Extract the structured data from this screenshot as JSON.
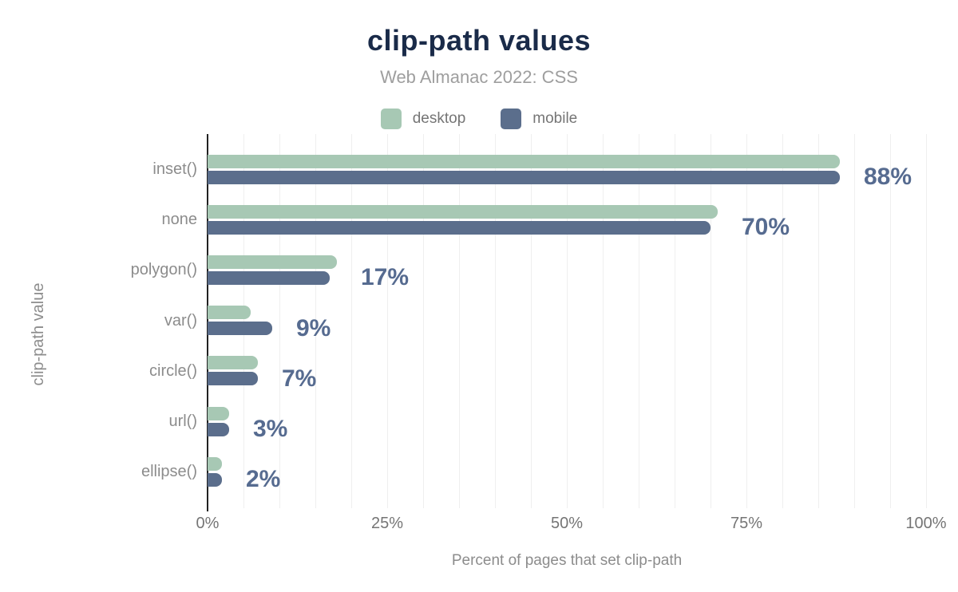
{
  "chart_data": {
    "type": "bar",
    "orientation": "horizontal",
    "title": "clip-path values",
    "subtitle": "Web Almanac 2022: CSS",
    "categories": [
      "inset()",
      "none",
      "polygon()",
      "var()",
      "circle()",
      "url()",
      "ellipse()"
    ],
    "series": [
      {
        "name": "desktop",
        "color": "#a7c8b4",
        "values": [
          88,
          71,
          18,
          6,
          7,
          3,
          2
        ]
      },
      {
        "name": "mobile",
        "color": "#5b6e8c",
        "values": [
          88,
          70,
          17,
          9,
          7,
          3,
          2
        ]
      }
    ],
    "value_labels": [
      "88%",
      "70%",
      "17%",
      "9%",
      "7%",
      "3%",
      "2%"
    ],
    "xlabel": "Percent of pages that set clip-path",
    "ylabel": "clip-path value",
    "x_ticks": [
      "0%",
      "25%",
      "50%",
      "75%",
      "100%"
    ],
    "xlim": [
      0,
      100
    ],
    "grid_step": 5,
    "grid": true,
    "legend_position": "top",
    "colors": {
      "title": "#1a2b49",
      "subtitle": "#9e9e9e",
      "desktop": "#a7c8b4",
      "mobile": "#5b6e8c",
      "value_label": "#566b90",
      "axis_line": "#222222",
      "gridline": "#efefef",
      "tick_label": "#757575",
      "category_label": "#8c8c8c",
      "axis_title": "#8c8c8c",
      "legend_label": "#757575",
      "background": "#ffffff"
    }
  }
}
